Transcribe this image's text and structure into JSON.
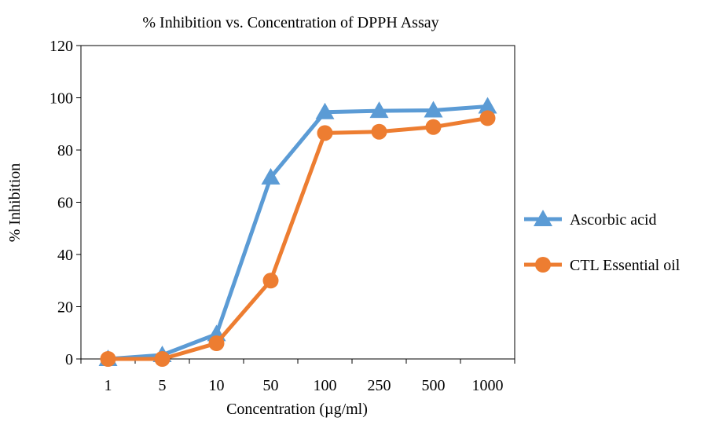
{
  "chart_data": {
    "type": "line",
    "title": "% Inhibition vs. Concentration of DPPH Assay",
    "xlabel": "Concentration  (µg/ml)",
    "ylabel": "% Inhibition",
    "categories": [
      "1",
      "5",
      "10",
      "50",
      "100",
      "250",
      "500",
      "1000"
    ],
    "ylim": [
      0,
      120
    ],
    "yticks": [
      0,
      20,
      40,
      60,
      80,
      100,
      120
    ],
    "grid": false,
    "legend_position": "right",
    "series": [
      {
        "name": "Ascorbic acid",
        "color": "#5B9BD5",
        "marker": "triangle",
        "values": [
          0,
          1.5,
          9.5,
          69.5,
          94.5,
          95,
          95.2,
          96.7
        ]
      },
      {
        "name": "CTL Essential oil",
        "color": "#ED7D31",
        "marker": "circle",
        "values": [
          0,
          0,
          6,
          30,
          86.5,
          87,
          88.8,
          92.2
        ]
      }
    ]
  }
}
